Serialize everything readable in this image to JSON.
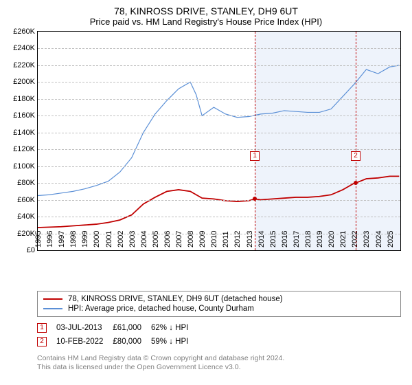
{
  "title": "78, KINROSS DRIVE, STANLEY, DH9 6UT",
  "subtitle": "Price paid vs. HM Land Registry's House Price Index (HPI)",
  "chart": {
    "type": "line",
    "ylim": [
      0,
      260000
    ],
    "ytick_step": 20000,
    "ytick_labels": [
      "£0",
      "£20K",
      "£40K",
      "£60K",
      "£80K",
      "£100K",
      "£120K",
      "£140K",
      "£160K",
      "£180K",
      "£200K",
      "£220K",
      "£240K",
      "£260K"
    ],
    "xlim": [
      1995,
      2025.9
    ],
    "xtick_step": 1,
    "xtick_labels": [
      "1995",
      "1996",
      "1997",
      "1998",
      "1999",
      "2000",
      "2001",
      "2002",
      "2003",
      "2004",
      "2005",
      "2006",
      "2007",
      "2008",
      "2009",
      "2010",
      "2011",
      "2012",
      "2013",
      "2014",
      "2015",
      "2016",
      "2017",
      "2018",
      "2019",
      "2020",
      "2021",
      "2022",
      "2023",
      "2024",
      "2025"
    ],
    "grid_color": "#c0c0c0",
    "background_color": "#ffffff",
    "shade_color": "#eef3fb",
    "shade_start_x": 2013.5,
    "series": [
      {
        "key": "property",
        "label": "78, KINROSS DRIVE, STANLEY, DH9 6UT (detached house)",
        "color": "#c00000",
        "width": 1.8,
        "points": [
          [
            1995,
            27000
          ],
          [
            1996,
            27500
          ],
          [
            1997,
            28000
          ],
          [
            1998,
            29000
          ],
          [
            1999,
            30000
          ],
          [
            2000,
            31000
          ],
          [
            2001,
            33000
          ],
          [
            2002,
            36000
          ],
          [
            2003,
            42000
          ],
          [
            2004,
            55000
          ],
          [
            2005,
            63000
          ],
          [
            2006,
            70000
          ],
          [
            2007,
            72000
          ],
          [
            2008,
            70000
          ],
          [
            2009,
            62000
          ],
          [
            2010,
            61000
          ],
          [
            2011,
            59000
          ],
          [
            2012,
            58000
          ],
          [
            2013,
            59000
          ],
          [
            2013.5,
            61000
          ],
          [
            2014,
            60000
          ],
          [
            2015,
            61000
          ],
          [
            2016,
            62000
          ],
          [
            2017,
            63000
          ],
          [
            2018,
            63000
          ],
          [
            2019,
            64000
          ],
          [
            2020,
            66000
          ],
          [
            2021,
            72000
          ],
          [
            2022,
            80000
          ],
          [
            2022.1,
            80000
          ],
          [
            2023,
            85000
          ],
          [
            2024,
            86000
          ],
          [
            2025,
            88000
          ],
          [
            2025.8,
            88000
          ]
        ]
      },
      {
        "key": "hpi",
        "label": "HPI: Average price, detached house, County Durham",
        "color": "#5a8fd6",
        "width": 1.2,
        "points": [
          [
            1995,
            65000
          ],
          [
            1996,
            66000
          ],
          [
            1997,
            68000
          ],
          [
            1998,
            70000
          ],
          [
            1999,
            73000
          ],
          [
            2000,
            77000
          ],
          [
            2001,
            82000
          ],
          [
            2002,
            93000
          ],
          [
            2003,
            110000
          ],
          [
            2004,
            140000
          ],
          [
            2005,
            162000
          ],
          [
            2006,
            178000
          ],
          [
            2007,
            192000
          ],
          [
            2008,
            200000
          ],
          [
            2008.5,
            185000
          ],
          [
            2009,
            160000
          ],
          [
            2010,
            170000
          ],
          [
            2011,
            162000
          ],
          [
            2012,
            158000
          ],
          [
            2013,
            159000
          ],
          [
            2014,
            162000
          ],
          [
            2015,
            163000
          ],
          [
            2016,
            166000
          ],
          [
            2017,
            165000
          ],
          [
            2018,
            164000
          ],
          [
            2019,
            164000
          ],
          [
            2020,
            168000
          ],
          [
            2021,
            183000
          ],
          [
            2022,
            198000
          ],
          [
            2023,
            215000
          ],
          [
            2024,
            210000
          ],
          [
            2025,
            218000
          ],
          [
            2025.8,
            220000
          ]
        ]
      }
    ],
    "sale_markers": [
      {
        "n": "1",
        "x": 2013.5,
        "y_plot": 118000,
        "color": "#c00000",
        "dot_y": 61000
      },
      {
        "n": "2",
        "x": 2022.1,
        "y_plot": 118000,
        "color": "#c00000",
        "dot_y": 80000
      }
    ]
  },
  "legend": [
    {
      "color": "#c00000",
      "width": 2,
      "label": "78, KINROSS DRIVE, STANLEY, DH9 6UT (detached house)"
    },
    {
      "color": "#5a8fd6",
      "width": 1.4,
      "label": "HPI: Average price, detached house, County Durham"
    }
  ],
  "sales": [
    {
      "n": "1",
      "color": "#c00000",
      "date": "03-JUL-2013",
      "price": "£61,000",
      "diff": "62% ↓ HPI"
    },
    {
      "n": "2",
      "color": "#c00000",
      "date": "10-FEB-2022",
      "price": "£80,000",
      "diff": "59% ↓ HPI"
    }
  ],
  "footer_line1": "Contains HM Land Registry data © Crown copyright and database right 2024.",
  "footer_line2": "This data is licensed under the Open Government Licence v3.0."
}
